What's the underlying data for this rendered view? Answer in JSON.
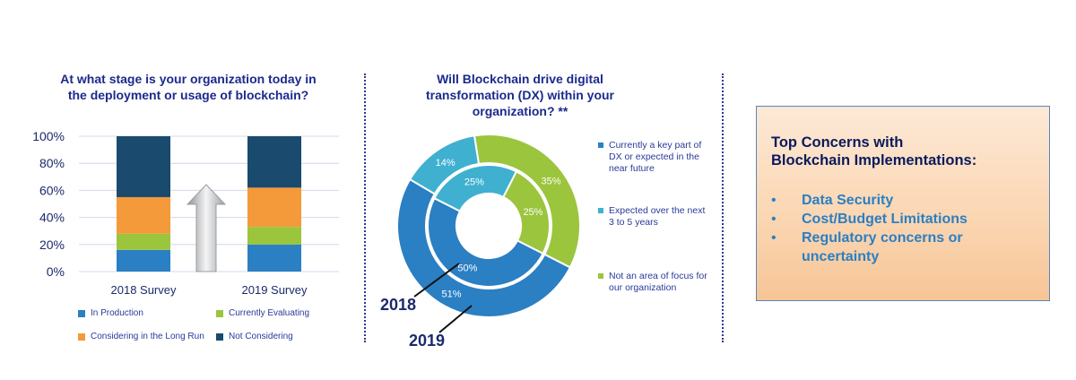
{
  "left_panel": {
    "title": "At what stage is your organization today in the deployment or usage of blockchain?"
  },
  "middle_panel": {
    "title": "Will Blockchain drive digital transformation (DX) within your organization? **",
    "year_inner": "2018",
    "year_outer": "2019"
  },
  "right_panel": {
    "heading_line1": "Top Concerns with",
    "heading_line2": "Blockchain Implementations:",
    "items": [
      "Data Security",
      "Cost/Budget Limitations",
      "Regulatory concerns or uncertainty"
    ],
    "bullet": "•"
  },
  "colors": {
    "in_production": "#2b7fc3",
    "currently_evaluating": "#9bc53d",
    "considering_long_run": "#f49a3a",
    "not_considering": "#1a4a6e",
    "key_part": "#2b7fc3",
    "expected": "#3fb0d0",
    "not_focus": "#9bc53d",
    "title": "#1b2a8c"
  },
  "chart_data": [
    {
      "type": "bar",
      "stacked": true,
      "categories": [
        "2018 Survey",
        "2019 Survey"
      ],
      "series": [
        {
          "name": "In Production",
          "values": [
            16,
            20
          ]
        },
        {
          "name": "Currently Evaluating",
          "values": [
            12,
            13
          ]
        },
        {
          "name": "Considering in the Long Run",
          "values": [
            27,
            29
          ]
        },
        {
          "name": "Not Considering",
          "values": [
            45,
            38
          ]
        }
      ],
      "ylim": [
        0,
        100
      ],
      "yticks": [
        "0%",
        "20%",
        "40%",
        "60%",
        "80%",
        "100%"
      ],
      "legend_position": "bottom",
      "grid": true
    },
    {
      "type": "pie",
      "donut": true,
      "rings": [
        {
          "name": "2018",
          "ring": "inner",
          "values": [
            50,
            25,
            25
          ],
          "labels": [
            "50%",
            "25%",
            "25%"
          ]
        },
        {
          "name": "2019",
          "ring": "outer",
          "values": [
            51,
            14,
            35
          ],
          "labels": [
            "51%",
            "14%",
            "35%"
          ]
        }
      ],
      "categories": [
        "Currently a key part of DX or expected in the near future",
        "Expected over the next 3 to 5 years",
        "Not an area of focus for our organization"
      ],
      "legend_position": "right"
    }
  ]
}
